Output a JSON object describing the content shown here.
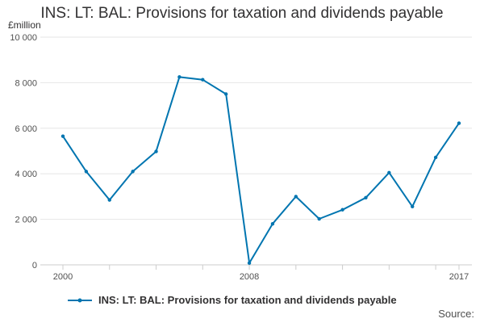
{
  "chart_data": {
    "type": "line",
    "title": "INS: LT: BAL: Provisions for taxation and dividends payable",
    "ylabel": "£million",
    "ylim": [
      0,
      10000
    ],
    "yticks": [
      0,
      2000,
      4000,
      6000,
      8000,
      10000
    ],
    "ytick_labels": [
      "0",
      "2 000",
      "4 000",
      "6 000",
      "8 000",
      "10 000"
    ],
    "xlim": [
      2000,
      2017
    ],
    "xtick_labels": [
      {
        "x": 2000,
        "label": "2000"
      },
      {
        "x": 2008,
        "label": "2008"
      },
      {
        "x": 2017,
        "label": "2017"
      }
    ],
    "grid": true,
    "legend_position": "bottom-left",
    "series": [
      {
        "name": "INS: LT: BAL: Provisions for taxation and dividends payable",
        "color": "#0075b0",
        "x": [
          2000,
          2001,
          2002,
          2003,
          2004,
          2005,
          2006,
          2007,
          2008,
          2009,
          2010,
          2011,
          2012,
          2013,
          2014,
          2015,
          2016,
          2017
        ],
        "values": [
          5650,
          4100,
          2850,
          4100,
          4980,
          8250,
          8130,
          7500,
          80,
          1800,
          3000,
          2020,
          2420,
          2950,
          4050,
          2560,
          4720,
          6220
        ]
      }
    ]
  },
  "source_label": "Source:"
}
